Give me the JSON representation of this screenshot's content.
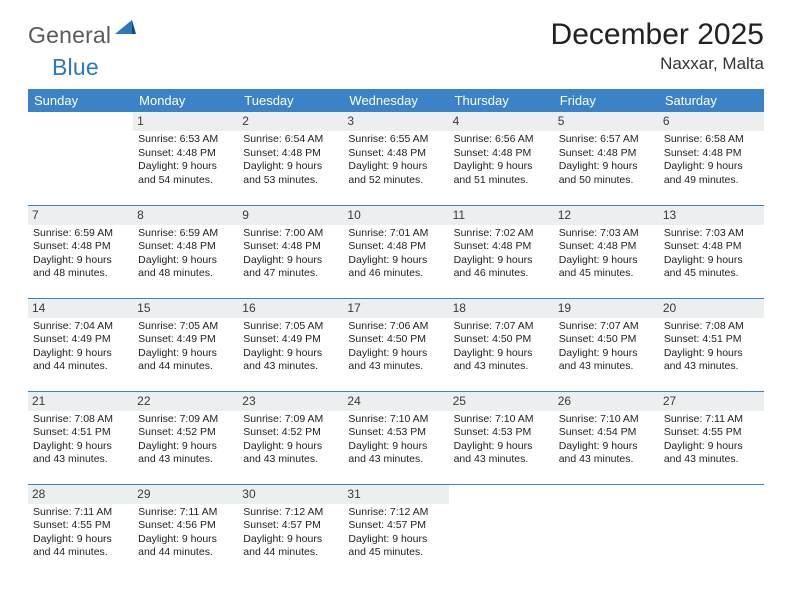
{
  "logo": {
    "word1": "General",
    "word2": "Blue"
  },
  "title": "December 2025",
  "location": "Naxxar, Malta",
  "colors": {
    "header_bg": "#3b83c6",
    "header_fg": "#ffffff",
    "daynum_bg": "#eceff0",
    "rule": "#3b83c6",
    "logo_gray": "#5a5a5a",
    "logo_blue": "#2f77bb"
  },
  "day_names": [
    "Sunday",
    "Monday",
    "Tuesday",
    "Wednesday",
    "Thursday",
    "Friday",
    "Saturday"
  ],
  "weeks": [
    [
      {
        "n": "",
        "text": ""
      },
      {
        "n": "1",
        "sunrise": "6:53 AM",
        "sunset": "4:48 PM",
        "dl": "9 hours and 54 minutes."
      },
      {
        "n": "2",
        "sunrise": "6:54 AM",
        "sunset": "4:48 PM",
        "dl": "9 hours and 53 minutes."
      },
      {
        "n": "3",
        "sunrise": "6:55 AM",
        "sunset": "4:48 PM",
        "dl": "9 hours and 52 minutes."
      },
      {
        "n": "4",
        "sunrise": "6:56 AM",
        "sunset": "4:48 PM",
        "dl": "9 hours and 51 minutes."
      },
      {
        "n": "5",
        "sunrise": "6:57 AM",
        "sunset": "4:48 PM",
        "dl": "9 hours and 50 minutes."
      },
      {
        "n": "6",
        "sunrise": "6:58 AM",
        "sunset": "4:48 PM",
        "dl": "9 hours and 49 minutes."
      }
    ],
    [
      {
        "n": "7",
        "sunrise": "6:59 AM",
        "sunset": "4:48 PM",
        "dl": "9 hours and 48 minutes."
      },
      {
        "n": "8",
        "sunrise": "6:59 AM",
        "sunset": "4:48 PM",
        "dl": "9 hours and 48 minutes."
      },
      {
        "n": "9",
        "sunrise": "7:00 AM",
        "sunset": "4:48 PM",
        "dl": "9 hours and 47 minutes."
      },
      {
        "n": "10",
        "sunrise": "7:01 AM",
        "sunset": "4:48 PM",
        "dl": "9 hours and 46 minutes."
      },
      {
        "n": "11",
        "sunrise": "7:02 AM",
        "sunset": "4:48 PM",
        "dl": "9 hours and 46 minutes."
      },
      {
        "n": "12",
        "sunrise": "7:03 AM",
        "sunset": "4:48 PM",
        "dl": "9 hours and 45 minutes."
      },
      {
        "n": "13",
        "sunrise": "7:03 AM",
        "sunset": "4:48 PM",
        "dl": "9 hours and 45 minutes."
      }
    ],
    [
      {
        "n": "14",
        "sunrise": "7:04 AM",
        "sunset": "4:49 PM",
        "dl": "9 hours and 44 minutes."
      },
      {
        "n": "15",
        "sunrise": "7:05 AM",
        "sunset": "4:49 PM",
        "dl": "9 hours and 44 minutes."
      },
      {
        "n": "16",
        "sunrise": "7:05 AM",
        "sunset": "4:49 PM",
        "dl": "9 hours and 43 minutes."
      },
      {
        "n": "17",
        "sunrise": "7:06 AM",
        "sunset": "4:50 PM",
        "dl": "9 hours and 43 minutes."
      },
      {
        "n": "18",
        "sunrise": "7:07 AM",
        "sunset": "4:50 PM",
        "dl": "9 hours and 43 minutes."
      },
      {
        "n": "19",
        "sunrise": "7:07 AM",
        "sunset": "4:50 PM",
        "dl": "9 hours and 43 minutes."
      },
      {
        "n": "20",
        "sunrise": "7:08 AM",
        "sunset": "4:51 PM",
        "dl": "9 hours and 43 minutes."
      }
    ],
    [
      {
        "n": "21",
        "sunrise": "7:08 AM",
        "sunset": "4:51 PM",
        "dl": "9 hours and 43 minutes."
      },
      {
        "n": "22",
        "sunrise": "7:09 AM",
        "sunset": "4:52 PM",
        "dl": "9 hours and 43 minutes."
      },
      {
        "n": "23",
        "sunrise": "7:09 AM",
        "sunset": "4:52 PM",
        "dl": "9 hours and 43 minutes."
      },
      {
        "n": "24",
        "sunrise": "7:10 AM",
        "sunset": "4:53 PM",
        "dl": "9 hours and 43 minutes."
      },
      {
        "n": "25",
        "sunrise": "7:10 AM",
        "sunset": "4:53 PM",
        "dl": "9 hours and 43 minutes."
      },
      {
        "n": "26",
        "sunrise": "7:10 AM",
        "sunset": "4:54 PM",
        "dl": "9 hours and 43 minutes."
      },
      {
        "n": "27",
        "sunrise": "7:11 AM",
        "sunset": "4:55 PM",
        "dl": "9 hours and 43 minutes."
      }
    ],
    [
      {
        "n": "28",
        "sunrise": "7:11 AM",
        "sunset": "4:55 PM",
        "dl": "9 hours and 44 minutes."
      },
      {
        "n": "29",
        "sunrise": "7:11 AM",
        "sunset": "4:56 PM",
        "dl": "9 hours and 44 minutes."
      },
      {
        "n": "30",
        "sunrise": "7:12 AM",
        "sunset": "4:57 PM",
        "dl": "9 hours and 44 minutes."
      },
      {
        "n": "31",
        "sunrise": "7:12 AM",
        "sunset": "4:57 PM",
        "dl": "9 hours and 45 minutes."
      },
      {
        "n": "",
        "text": ""
      },
      {
        "n": "",
        "text": ""
      },
      {
        "n": "",
        "text": ""
      }
    ]
  ],
  "labels": {
    "sunrise": "Sunrise: ",
    "sunset": "Sunset: ",
    "daylight": "Daylight: "
  }
}
